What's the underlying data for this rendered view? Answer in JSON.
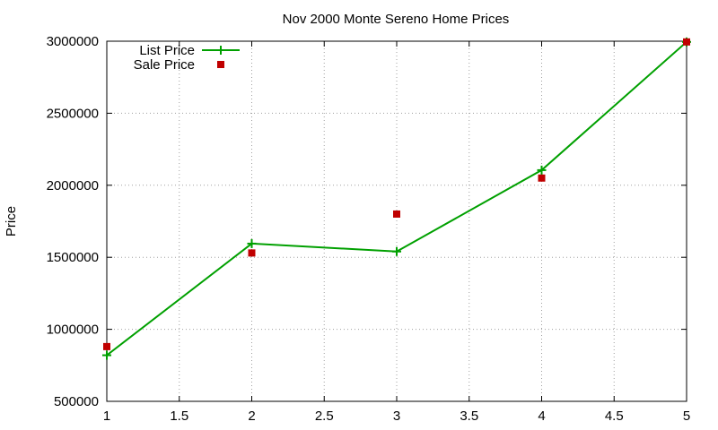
{
  "chart_data": {
    "type": "line",
    "title": "Nov 2000 Monte Sereno Home Prices",
    "xlabel": "",
    "ylabel": "Price",
    "xlim": [
      1,
      5
    ],
    "ylim": [
      500000,
      3000000
    ],
    "x_ticks": [
      "1",
      "1.5",
      "2",
      "2.5",
      "3",
      "3.5",
      "4",
      "4.5",
      "5"
    ],
    "y_ticks": [
      "500000",
      "1000000",
      "1500000",
      "2000000",
      "2500000",
      "3000000"
    ],
    "x_tick_values": [
      1,
      1.5,
      2,
      2.5,
      3,
      3.5,
      4,
      4.5,
      5
    ],
    "y_tick_values": [
      500000,
      1000000,
      1500000,
      2000000,
      2500000,
      3000000
    ],
    "grid": true,
    "legend_position": "top-left",
    "series": [
      {
        "name": "List Price",
        "style": "linespoints",
        "marker": "plus",
        "color": "#00a000",
        "x": [
          1,
          2,
          3,
          4,
          5
        ],
        "values": [
          820000,
          1595000,
          1540000,
          2105000,
          2995000
        ]
      },
      {
        "name": "Sale Price",
        "style": "points",
        "marker": "square",
        "color": "#c00000",
        "x": [
          1,
          2,
          3,
          4,
          5
        ],
        "values": [
          880000,
          1530000,
          1800000,
          2050000,
          2995000
        ]
      }
    ]
  }
}
